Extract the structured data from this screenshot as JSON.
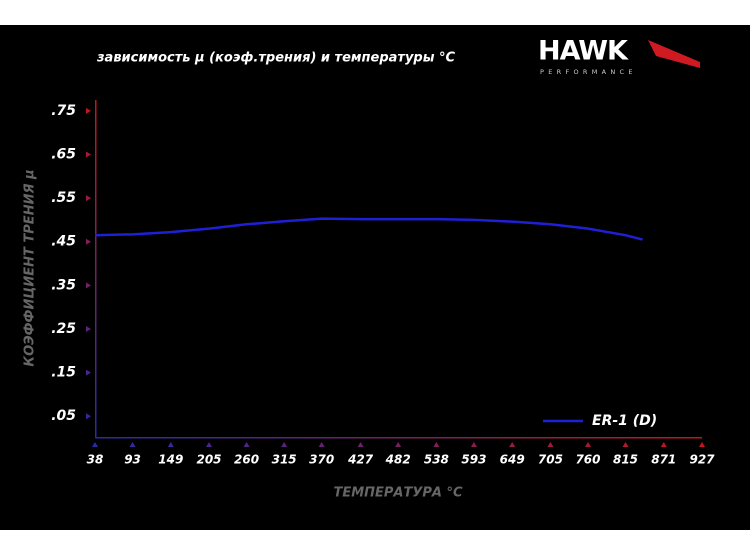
{
  "chart_data": {
    "type": "line",
    "title": "зависимость μ (коэф.трения) и температуры °C",
    "brand": "HAWK",
    "brand_subtitle": "PERFORMANCE",
    "x_label": "ТЕМПЕРАТУРА °C",
    "y_label": "КОЭФФИЦИЕНТ ТРЕНИЯ μ",
    "x": [
      38,
      93,
      149,
      205,
      260,
      315,
      370,
      427,
      482,
      538,
      593,
      649,
      705,
      760,
      815,
      840
    ],
    "series": [
      {
        "name": "ER-1 (D)",
        "color": "#1f1fd6",
        "values": [
          0.465,
          0.467,
          0.472,
          0.48,
          0.49,
          0.497,
          0.503,
          0.502,
          0.502,
          0.502,
          0.5,
          0.496,
          0.49,
          0.48,
          0.465,
          0.455
        ]
      }
    ],
    "xlim": [
      38,
      927
    ],
    "xticks": [
      38,
      93,
      149,
      205,
      260,
      315,
      370,
      427,
      482,
      538,
      593,
      649,
      705,
      760,
      815,
      871,
      927
    ],
    "ylim": [
      0,
      0.775
    ],
    "yticks": [
      {
        "value": 0.05,
        "label": ".05"
      },
      {
        "value": 0.15,
        "label": ".15"
      },
      {
        "value": 0.25,
        "label": ".25"
      },
      {
        "value": 0.35,
        "label": ".35"
      },
      {
        "value": 0.45,
        "label": ".45"
      },
      {
        "value": 0.55,
        "label": ".55"
      },
      {
        "value": 0.65,
        "label": ".65"
      },
      {
        "value": 0.75,
        "label": ".75"
      }
    ],
    "legend": "lower right",
    "grid": false
  }
}
